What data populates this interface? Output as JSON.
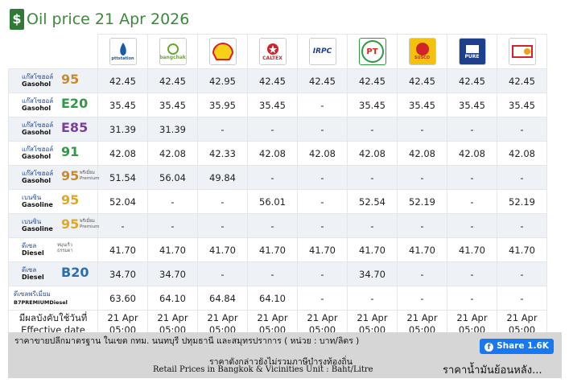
{
  "header": {
    "title": "Oil price 21 Apr 2026"
  },
  "brands": {
    "ptt": "pttstation",
    "bangchak": "bangchak",
    "caltex": "CALTEX",
    "irpc": "IRPC",
    "pt": "PT",
    "susco": "SUSCO",
    "pure": "PURE"
  },
  "table": {
    "rows": [
      {
        "thai": "แก๊สโซฮอล์",
        "en": "Gasohol",
        "grade": "95",
        "grade_color": "#c98a2b",
        "values": [
          "42.45",
          "42.45",
          "42.95",
          "42.45",
          "42.45",
          "42.45",
          "42.45",
          "42.45",
          "42.45"
        ]
      },
      {
        "thai": "แก๊สโซฮอล์",
        "en": "Gasohol",
        "grade": "E20",
        "grade_color": "#2f9a41",
        "values": [
          "35.45",
          "35.45",
          "35.95",
          "35.45",
          "-",
          "35.45",
          "35.45",
          "35.45",
          "35.45"
        ]
      },
      {
        "thai": "แก๊สโซฮอล์",
        "en": "Gasohol",
        "grade": "E85",
        "grade_color": "#7a3e9d",
        "values": [
          "31.39",
          "31.39",
          "-",
          "-",
          "-",
          "-",
          "-",
          "-",
          "-"
        ]
      },
      {
        "thai": "แก๊สโซฮอล์",
        "en": "Gasohol",
        "grade": "91",
        "grade_color": "#2f9a41",
        "values": [
          "42.08",
          "42.08",
          "42.33",
          "42.08",
          "42.08",
          "42.08",
          "42.08",
          "42.08",
          "42.08"
        ]
      },
      {
        "thai": "แก๊สโซฮอล์",
        "en": "Gasohol",
        "grade": "95",
        "grade_color": "#c98a2b",
        "note_th": "พรีเมี่ยม",
        "note_en": "Premium",
        "values": [
          "51.54",
          "56.04",
          "49.84",
          "-",
          "-",
          "-",
          "-",
          "-",
          "-"
        ]
      },
      {
        "thai": "เบนซิน",
        "en": "Gasoline",
        "grade": "95",
        "grade_color": "#e0a820",
        "values": [
          "52.04",
          "-",
          "-",
          "56.01",
          "-",
          "52.54",
          "52.19",
          "-",
          "52.19"
        ]
      },
      {
        "thai": "เบนซิน",
        "en": "Gasoline",
        "grade": "95",
        "grade_color": "#e0a820",
        "note_th": "พรีเมี่ยม",
        "note_en": "Premium",
        "values": [
          "-",
          "-",
          "-",
          "-",
          "-",
          "-",
          "-",
          "-",
          "-"
        ]
      },
      {
        "thai": "ดีเซล",
        "en": "Diesel",
        "note_th": "หมุนเร็ว",
        "note_en": "ธรรมดา",
        "values": [
          "41.70",
          "41.70",
          "41.70",
          "41.70",
          "41.70",
          "41.70",
          "41.70",
          "41.70",
          "41.70"
        ]
      },
      {
        "thai": "ดีเซล",
        "en": "Diesel",
        "grade": "B20",
        "grade_color": "#2a6db5",
        "values": [
          "34.70",
          "34.70",
          "-",
          "-",
          "-",
          "34.70",
          "-",
          "-",
          "-"
        ]
      },
      {
        "thai": "ดีเซลพรีเมี่ยม",
        "en": "B7PREMIUMDiesel",
        "values": [
          "63.60",
          "64.10",
          "64.84",
          "64.10",
          "-",
          "-",
          "-",
          "-",
          "-"
        ]
      }
    ],
    "effective": {
      "thai": "มีผลบังคับใช้วันที่",
      "en": "Effective date",
      "dates": [
        "21 Apr",
        "21 Apr",
        "21 Apr",
        "21 Apr",
        "21 Apr",
        "21 Apr",
        "21 Apr",
        "21 Apr",
        "21 Apr"
      ],
      "times": [
        "05:00",
        "05:00",
        "05:00",
        "05:00",
        "05:00",
        "05:00",
        "05:00",
        "05:00",
        "05:00"
      ]
    }
  },
  "footer": {
    "line1": "ราคาขายปลีกมาตรฐาน ในเขต กทม. นนทบุรี ปทุมธานี และสมุทรปราการ ( หน่วย : บาท/ลิตร )",
    "line2": "ราคาดังกล่าวยังไม่รวมภาษีบำรุงท้องถิ่น",
    "line3": "Retail Prices in Bangkok & Vicinities Unit : Baht/Litre",
    "share": "Share 1.6K",
    "history": "ราคาน้ำมันย้อนหลัง..."
  }
}
